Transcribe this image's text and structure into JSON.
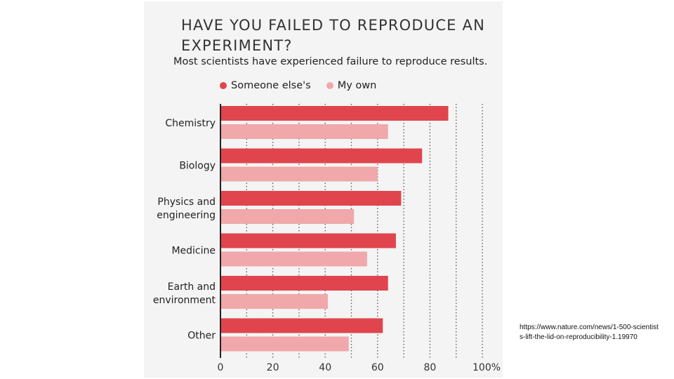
{
  "chart_data": {
    "type": "bar",
    "orientation": "horizontal",
    "title": "HAVE YOU FAILED TO REPRODUCE AN EXPERIMENT?",
    "subtitle": "Most scientists have experienced failure to reproduce results.",
    "categories": [
      "Chemistry",
      "Biology",
      "Physics and engineering",
      "Medicine",
      "Earth and environment",
      "Other"
    ],
    "series": [
      {
        "name": "Someone else's",
        "color": "#e0454e",
        "values": [
          87,
          77,
          69,
          67,
          64,
          62
        ]
      },
      {
        "name": "My own",
        "color": "#f0a8aa",
        "values": [
          64,
          60,
          51,
          56,
          41,
          49
        ]
      }
    ],
    "xlim": [
      0,
      100
    ],
    "x_ticks": [
      "0",
      "20",
      "40",
      "60",
      "80",
      "100%"
    ],
    "grid": true,
    "legend_position": "top"
  },
  "source_note": "https://www.nature.com/news/1-500-scientists-lift-the-lid-on-reproducibility-1.19970"
}
